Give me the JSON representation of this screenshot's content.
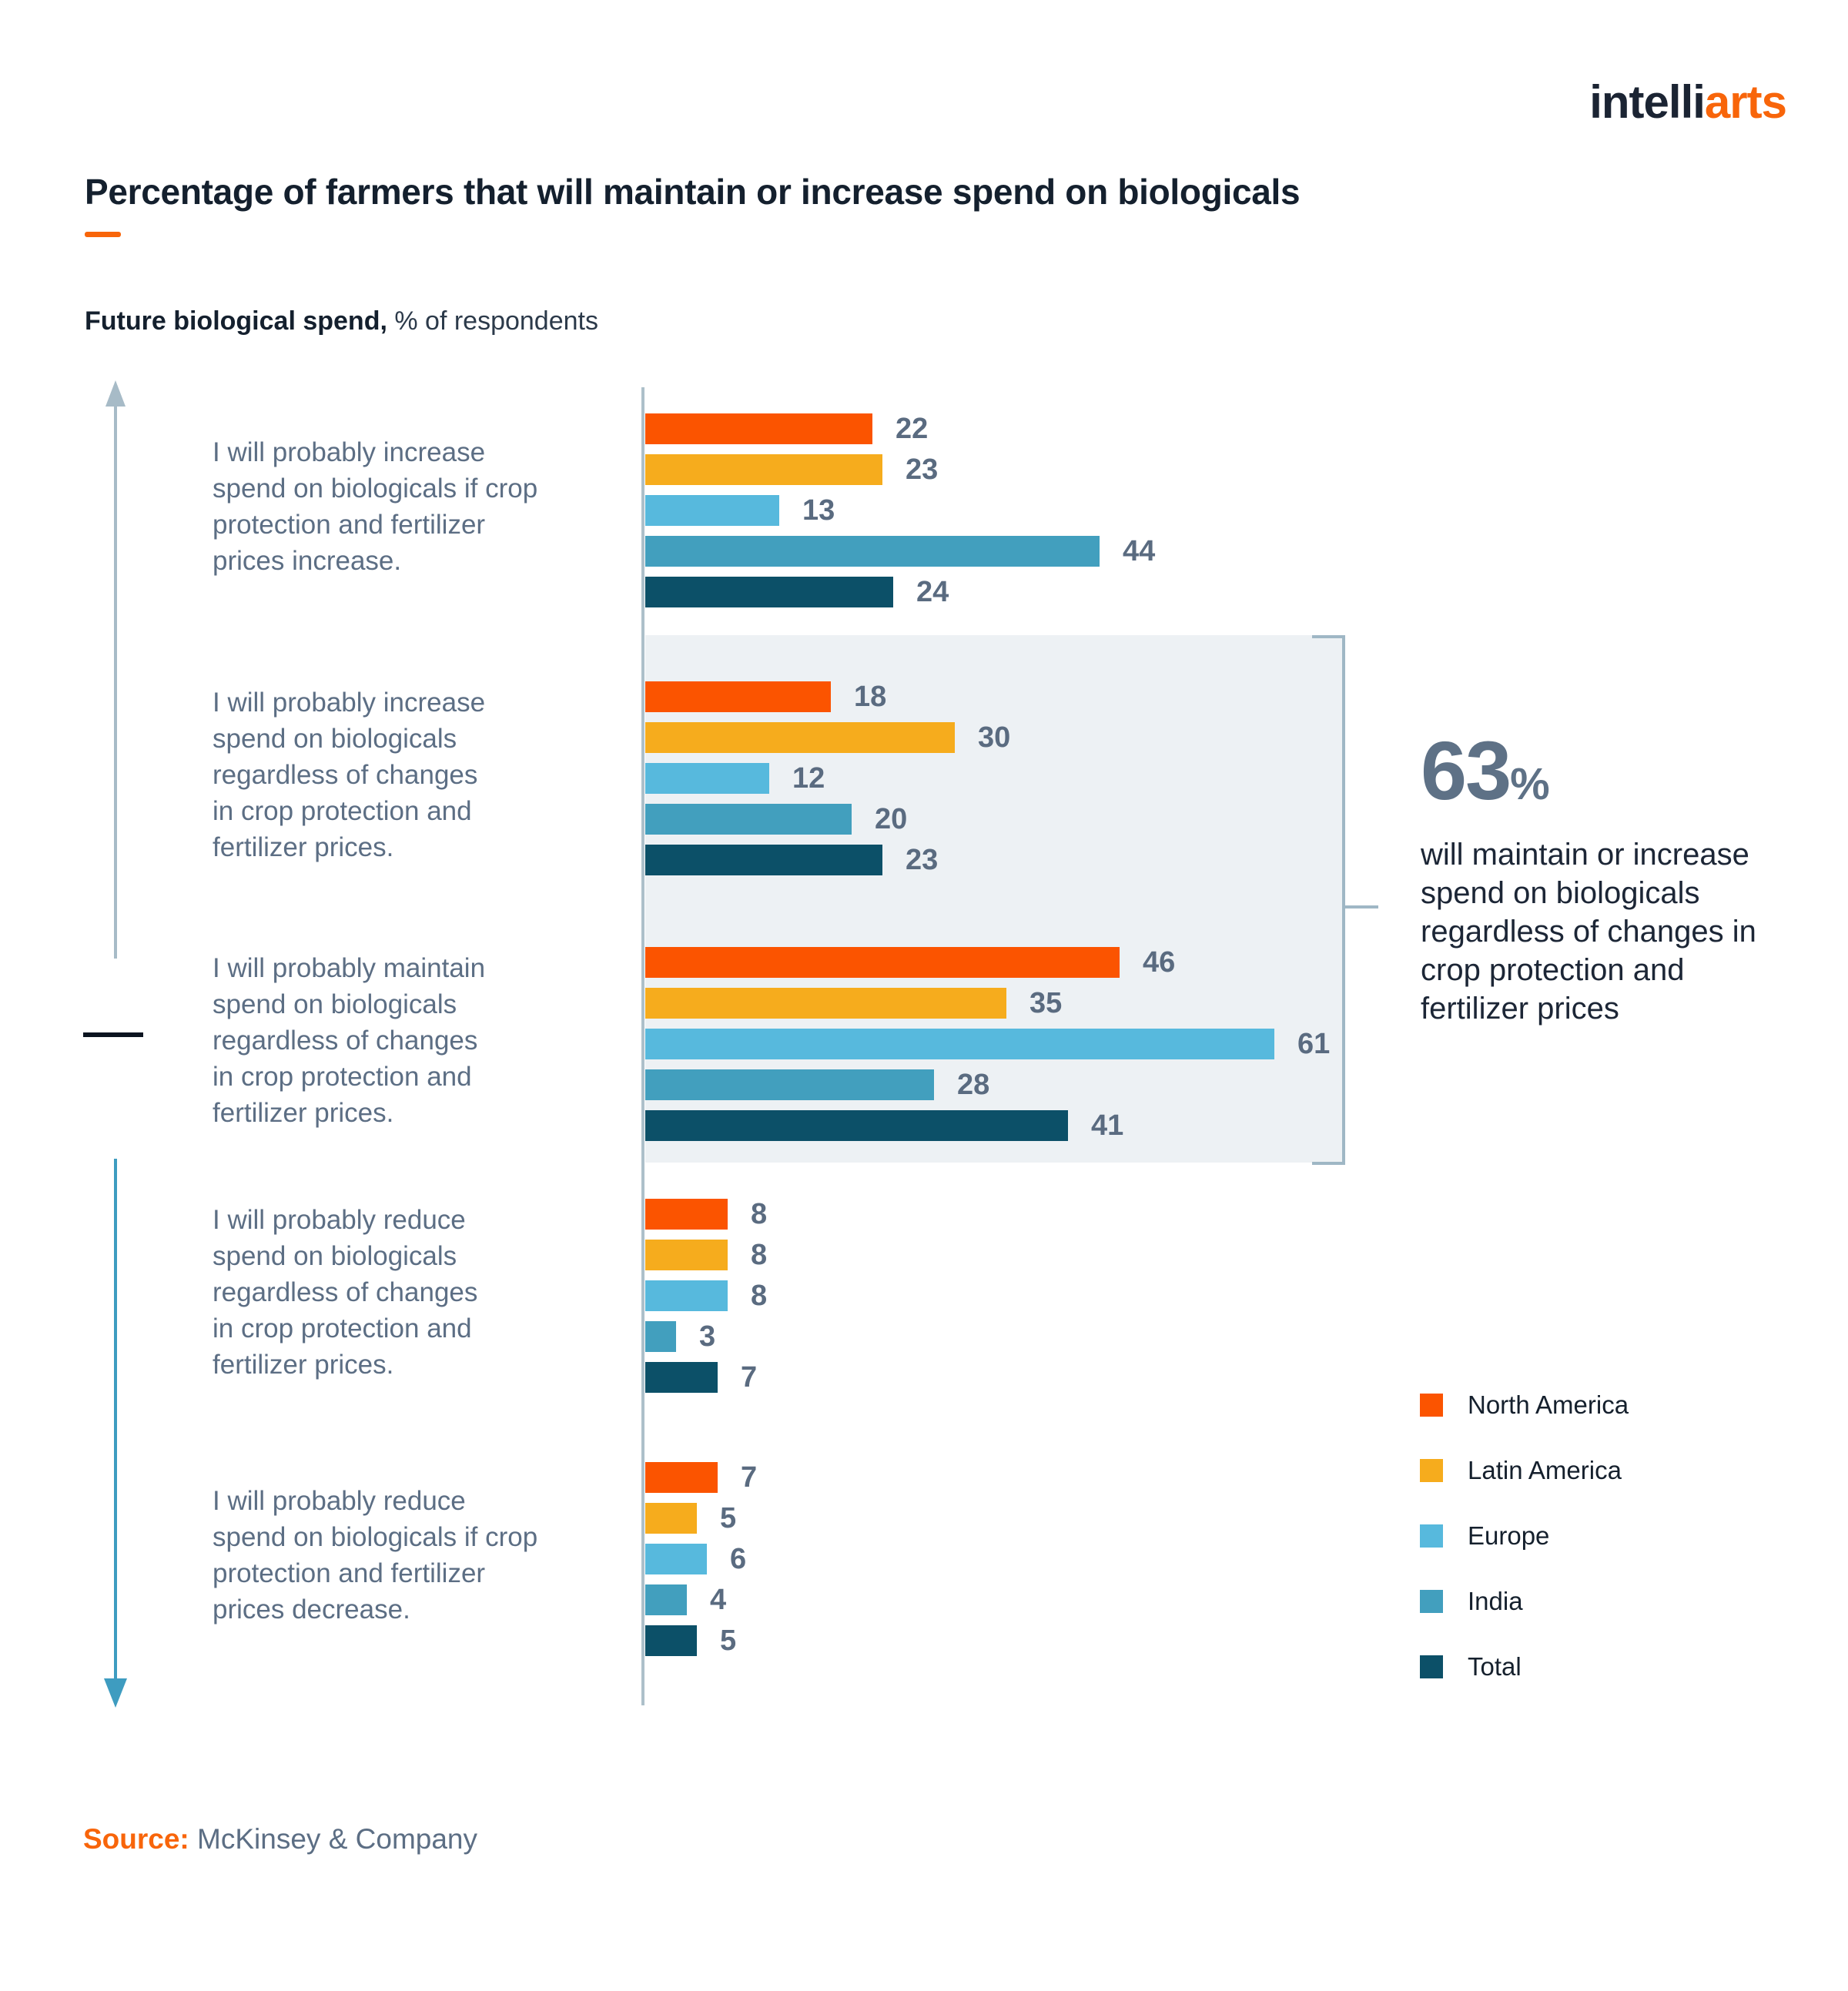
{
  "logo": {
    "part1": "intelli",
    "part2": "arts"
  },
  "title": "Percentage of farmers that will maintain or increase spend on biologicals",
  "subtitle_bold": "Future biological spend,",
  "subtitle_rest": " % of respondents",
  "accent_color": "#f8650a",
  "highlight_box_color": "#edf1f4",
  "axis_color": "#adc0ca",
  "up_arrow_color": "#a7bbc7",
  "down_arrow_color": "#3e9cc0",
  "bracket_color": "#9fb7c5",
  "chart_data": {
    "type": "bar",
    "orientation": "horizontal",
    "title": "Percentage of farmers that will maintain or increase spend on biologicals",
    "value_unit": "% of respondents",
    "xlim": [
      0,
      61
    ],
    "grid": false,
    "legend_position": "right-bottom",
    "series_names": [
      "North America",
      "Latin America",
      "Europe",
      "India",
      "Total"
    ],
    "groups": [
      {
        "label": "I will probably increase\nspend on biologicals if crop\nprotection and fertilizer\nprices increase.",
        "values": [
          22,
          23,
          13,
          44,
          24
        ]
      },
      {
        "label": "I will probably increase\nspend on biologicals\nregardless of changes\nin crop protection and\nfertilizer prices.",
        "values": [
          18,
          30,
          12,
          20,
          23
        ]
      },
      {
        "label": "I will probably maintain\nspend on biologicals\nregardless of changes\nin crop protection and\nfertilizer prices.",
        "values": [
          46,
          35,
          61,
          28,
          41
        ]
      },
      {
        "label": "I will probably reduce\nspend on biologicals\nregardless of changes\nin crop protection and\nfertilizer prices.",
        "values": [
          8,
          8,
          8,
          3,
          7
        ]
      },
      {
        "label": "I will probably reduce\nspend on biologicals if crop\nprotection and fertilizer\nprices decrease.",
        "values": [
          7,
          5,
          6,
          4,
          5
        ]
      }
    ],
    "highlight": {
      "highlighted_groups": [
        1,
        2
      ],
      "callout_value": "63",
      "callout_unit": "%",
      "callout_text": "will maintain or increase\nspend on biologicals\nregardless of changes in\ncrop protection and\nfertilizer prices"
    }
  },
  "legend": {
    "items": [
      {
        "label": "North America",
        "color": "#fb5400"
      },
      {
        "label": "Latin America",
        "color": "#f6ac1d"
      },
      {
        "label": "Europe",
        "color": "#57b9dd"
      },
      {
        "label": "India",
        "color": "#429fbe"
      },
      {
        "label": "Total",
        "color": "#0c5068"
      }
    ]
  },
  "source": {
    "label": "Source:",
    "text": " McKinsey & Company"
  }
}
